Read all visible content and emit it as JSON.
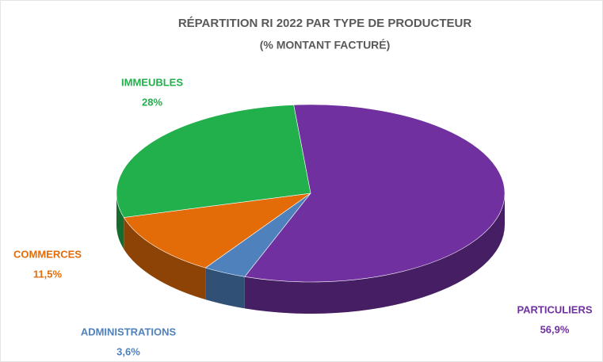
{
  "chart_data": {
    "type": "pie3d",
    "title": "RÉPARTITION RI 2022 PAR TYPE DE PRODUCTEUR",
    "subtitle": "(% MONTANT FACTURÉ)",
    "categories": [
      "PARTICULIERS",
      "ADMINISTRATIONS",
      "COMMERCES",
      "IMMEUBLES"
    ],
    "values": [
      56.9,
      3.6,
      11.5,
      28
    ],
    "value_labels": [
      "56,9%",
      "3,6%",
      "11,5%",
      "28%"
    ],
    "colors": [
      "#7030a0",
      "#4f81bd",
      "#e36c09",
      "#21b04b"
    ]
  }
}
